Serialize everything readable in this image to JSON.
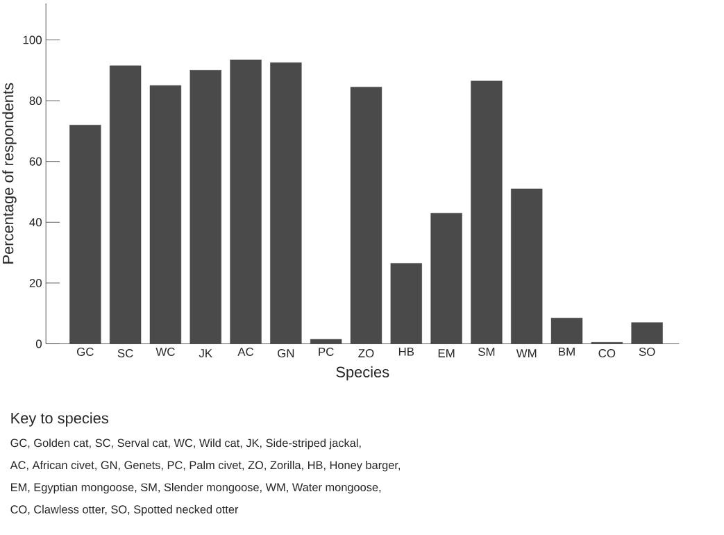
{
  "chart_data": {
    "type": "bar",
    "xlabel": "Species",
    "ylabel": "Percentage of respondents",
    "categories": [
      "GC",
      "SC",
      "WC",
      "JK",
      "AC",
      "GN",
      "PC",
      "ZO",
      "HB",
      "EM",
      "SM",
      "WM",
      "BM",
      "CO",
      "SO"
    ],
    "values": [
      72,
      91.5,
      85,
      90,
      93.5,
      92.5,
      1.5,
      84.5,
      26.5,
      43,
      86.5,
      51,
      8.5,
      0.5,
      7
    ],
    "color": "#4a4a4a",
    "ylim": [
      0,
      112
    ],
    "yticks": [
      0,
      20,
      40,
      60,
      80,
      100
    ],
    "grid": false,
    "annotations": [
      "Key to species",
      "GC, Golden cat, SC, Serval cat, WC, Wild cat, JK, Side-striped jackal,",
      "AC, African civet, GN, Genets, PC, Palm civet, ZO, Zorilla, HB, Honey barger,",
      "EM, Egyptian mongoose, SM, Slender mongoose, WM, Water mongoose,",
      "CO, Clawless otter, SO, Spotted necked otter"
    ]
  }
}
